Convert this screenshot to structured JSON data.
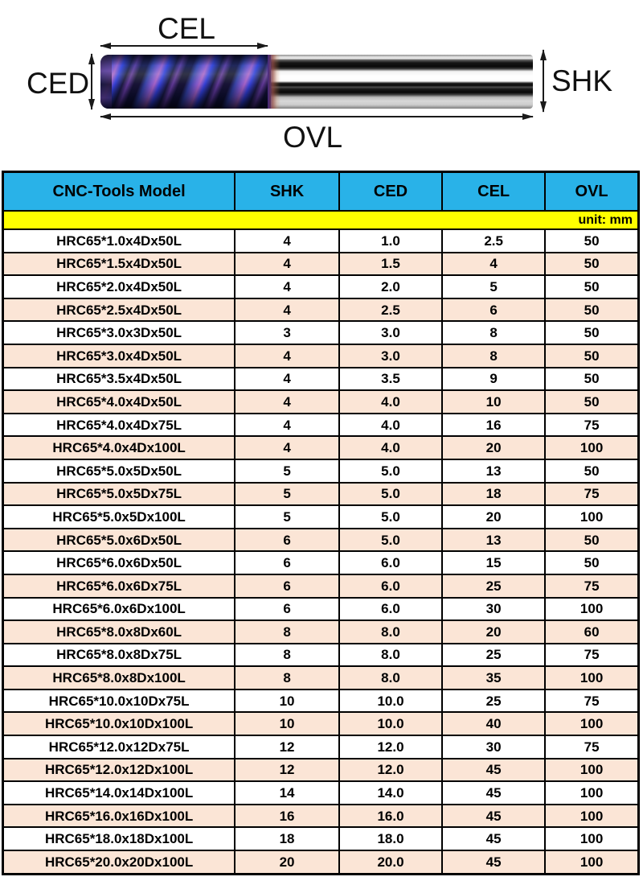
{
  "diagram": {
    "labels": {
      "cel": "CEL",
      "ced": "CED",
      "shk": "SHK",
      "ovl": "OVL"
    }
  },
  "table": {
    "headers": [
      "CNC-Tools Model",
      "SHK",
      "CED",
      "CEL",
      "OVL"
    ],
    "unit_note": "unit: mm",
    "colors": {
      "header_bg": "#29b2e8",
      "unit_bg": "#ffff00",
      "row_bg": "#ffffff",
      "row_alt_bg": "#fbe5d6",
      "border": "#000000"
    },
    "rows": [
      [
        "HRC65*1.0x4Dx50L",
        "4",
        "1.0",
        "2.5",
        "50"
      ],
      [
        "HRC65*1.5x4Dx50L",
        "4",
        "1.5",
        "4",
        "50"
      ],
      [
        "HRC65*2.0x4Dx50L",
        "4",
        "2.0",
        "5",
        "50"
      ],
      [
        "HRC65*2.5x4Dx50L",
        "4",
        "2.5",
        "6",
        "50"
      ],
      [
        "HRC65*3.0x3Dx50L",
        "3",
        "3.0",
        "8",
        "50"
      ],
      [
        "HRC65*3.0x4Dx50L",
        "4",
        "3.0",
        "8",
        "50"
      ],
      [
        "HRC65*3.5x4Dx50L",
        "4",
        "3.5",
        "9",
        "50"
      ],
      [
        "HRC65*4.0x4Dx50L",
        "4",
        "4.0",
        "10",
        "50"
      ],
      [
        "HRC65*4.0x4Dx75L",
        "4",
        "4.0",
        "16",
        "75"
      ],
      [
        "HRC65*4.0x4Dx100L",
        "4",
        "4.0",
        "20",
        "100"
      ],
      [
        "HRC65*5.0x5Dx50L",
        "5",
        "5.0",
        "13",
        "50"
      ],
      [
        "HRC65*5.0x5Dx75L",
        "5",
        "5.0",
        "18",
        "75"
      ],
      [
        "HRC65*5.0x5Dx100L",
        "5",
        "5.0",
        "20",
        "100"
      ],
      [
        "HRC65*5.0x6Dx50L",
        "6",
        "5.0",
        "13",
        "50"
      ],
      [
        "HRC65*6.0x6Dx50L",
        "6",
        "6.0",
        "15",
        "50"
      ],
      [
        "HRC65*6.0x6Dx75L",
        "6",
        "6.0",
        "25",
        "75"
      ],
      [
        "HRC65*6.0x6Dx100L",
        "6",
        "6.0",
        "30",
        "100"
      ],
      [
        "HRC65*8.0x8Dx60L",
        "8",
        "8.0",
        "20",
        "60"
      ],
      [
        "HRC65*8.0x8Dx75L",
        "8",
        "8.0",
        "25",
        "75"
      ],
      [
        "HRC65*8.0x8Dx100L",
        "8",
        "8.0",
        "35",
        "100"
      ],
      [
        "HRC65*10.0x10Dx75L",
        "10",
        "10.0",
        "25",
        "75"
      ],
      [
        "HRC65*10.0x10Dx100L",
        "10",
        "10.0",
        "40",
        "100"
      ],
      [
        "HRC65*12.0x12Dx75L",
        "12",
        "12.0",
        "30",
        "75"
      ],
      [
        "HRC65*12.0x12Dx100L",
        "12",
        "12.0",
        "45",
        "100"
      ],
      [
        "HRC65*14.0x14Dx100L",
        "14",
        "14.0",
        "45",
        "100"
      ],
      [
        "HRC65*16.0x16Dx100L",
        "16",
        "16.0",
        "45",
        "100"
      ],
      [
        "HRC65*18.0x18Dx100L",
        "18",
        "18.0",
        "45",
        "100"
      ],
      [
        "HRC65*20.0x20Dx100L",
        "20",
        "20.0",
        "45",
        "100"
      ]
    ]
  }
}
